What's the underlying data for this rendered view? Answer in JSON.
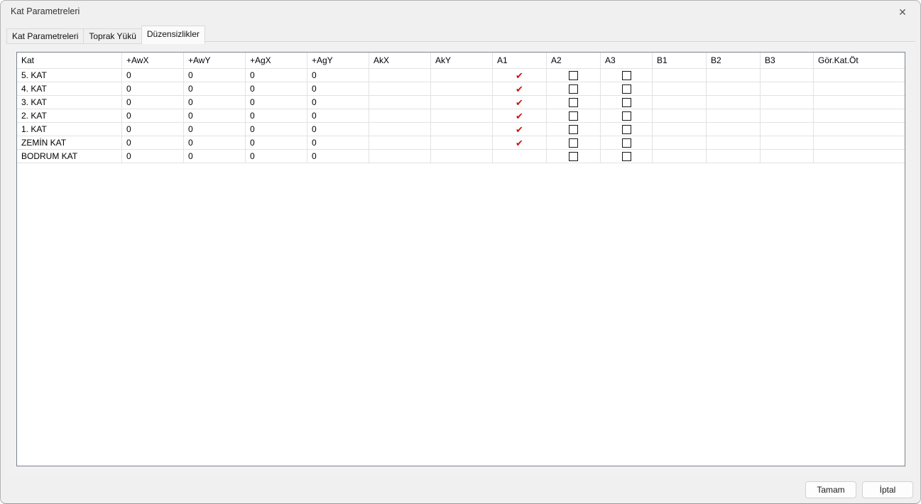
{
  "window": {
    "title": "Kat Parametreleri",
    "close_glyph": "✕"
  },
  "tabs": [
    {
      "label": "Kat Parametreleri",
      "active": false
    },
    {
      "label": "Toprak Yükü",
      "active": false
    },
    {
      "label": "Düzensizlikler",
      "active": true
    }
  ],
  "table": {
    "columns": [
      {
        "key": "kat",
        "label": "Kat",
        "type": "text"
      },
      {
        "key": "awx",
        "label": "+AwX",
        "type": "text"
      },
      {
        "key": "awy",
        "label": "+AwY",
        "type": "text"
      },
      {
        "key": "agx",
        "label": "+AgX",
        "type": "text"
      },
      {
        "key": "agy",
        "label": "+AgY",
        "type": "text"
      },
      {
        "key": "akx",
        "label": "AkX",
        "type": "text"
      },
      {
        "key": "aky",
        "label": "AkY",
        "type": "text"
      },
      {
        "key": "a1",
        "label": "A1",
        "type": "checkmark"
      },
      {
        "key": "a2",
        "label": "A2",
        "type": "checkbox"
      },
      {
        "key": "a3",
        "label": "A3",
        "type": "checkbox"
      },
      {
        "key": "b1",
        "label": "B1",
        "type": "text"
      },
      {
        "key": "b2",
        "label": "B2",
        "type": "text"
      },
      {
        "key": "b3",
        "label": "B3",
        "type": "text"
      },
      {
        "key": "gor",
        "label": "Gör.Kat.Öt",
        "type": "text"
      }
    ],
    "rows": [
      {
        "kat": "5. KAT",
        "awx": "0",
        "awy": "0",
        "agx": "0",
        "agy": "0",
        "akx": "",
        "aky": "",
        "a1": true,
        "a2": false,
        "a3": false,
        "b1": "",
        "b2": "",
        "b3": "",
        "gor": ""
      },
      {
        "kat": "4. KAT",
        "awx": "0",
        "awy": "0",
        "agx": "0",
        "agy": "0",
        "akx": "",
        "aky": "",
        "a1": true,
        "a2": false,
        "a3": false,
        "b1": "",
        "b2": "",
        "b3": "",
        "gor": ""
      },
      {
        "kat": "3. KAT",
        "awx": "0",
        "awy": "0",
        "agx": "0",
        "agy": "0",
        "akx": "",
        "aky": "",
        "a1": true,
        "a2": false,
        "a3": false,
        "b1": "",
        "b2": "",
        "b3": "",
        "gor": ""
      },
      {
        "kat": "2. KAT",
        "awx": "0",
        "awy": "0",
        "agx": "0",
        "agy": "0",
        "akx": "",
        "aky": "",
        "a1": true,
        "a2": false,
        "a3": false,
        "b1": "",
        "b2": "",
        "b3": "",
        "gor": ""
      },
      {
        "kat": "1. KAT",
        "awx": "0",
        "awy": "0",
        "agx": "0",
        "agy": "0",
        "akx": "",
        "aky": "",
        "a1": true,
        "a2": false,
        "a3": false,
        "b1": "",
        "b2": "",
        "b3": "",
        "gor": ""
      },
      {
        "kat": "ZEMİN KAT",
        "awx": "0",
        "awy": "0",
        "agx": "0",
        "agy": "0",
        "akx": "",
        "aky": "",
        "a1": true,
        "a2": false,
        "a3": false,
        "b1": "",
        "b2": "",
        "b3": "",
        "gor": ""
      },
      {
        "kat": "BODRUM KAT",
        "awx": "0",
        "awy": "0",
        "agx": "0",
        "agy": "0",
        "akx": "",
        "aky": "",
        "a1": false,
        "a2": false,
        "a3": false,
        "b1": "",
        "b2": "",
        "b3": "",
        "gor": ""
      }
    ]
  },
  "footer": {
    "ok_label": "Tamam",
    "cancel_label": "İptal"
  },
  "icons": {
    "check": "✔"
  },
  "colors": {
    "check_red": "#d01111",
    "grid_line": "#e2e2e2",
    "table_border": "#7b828c"
  }
}
